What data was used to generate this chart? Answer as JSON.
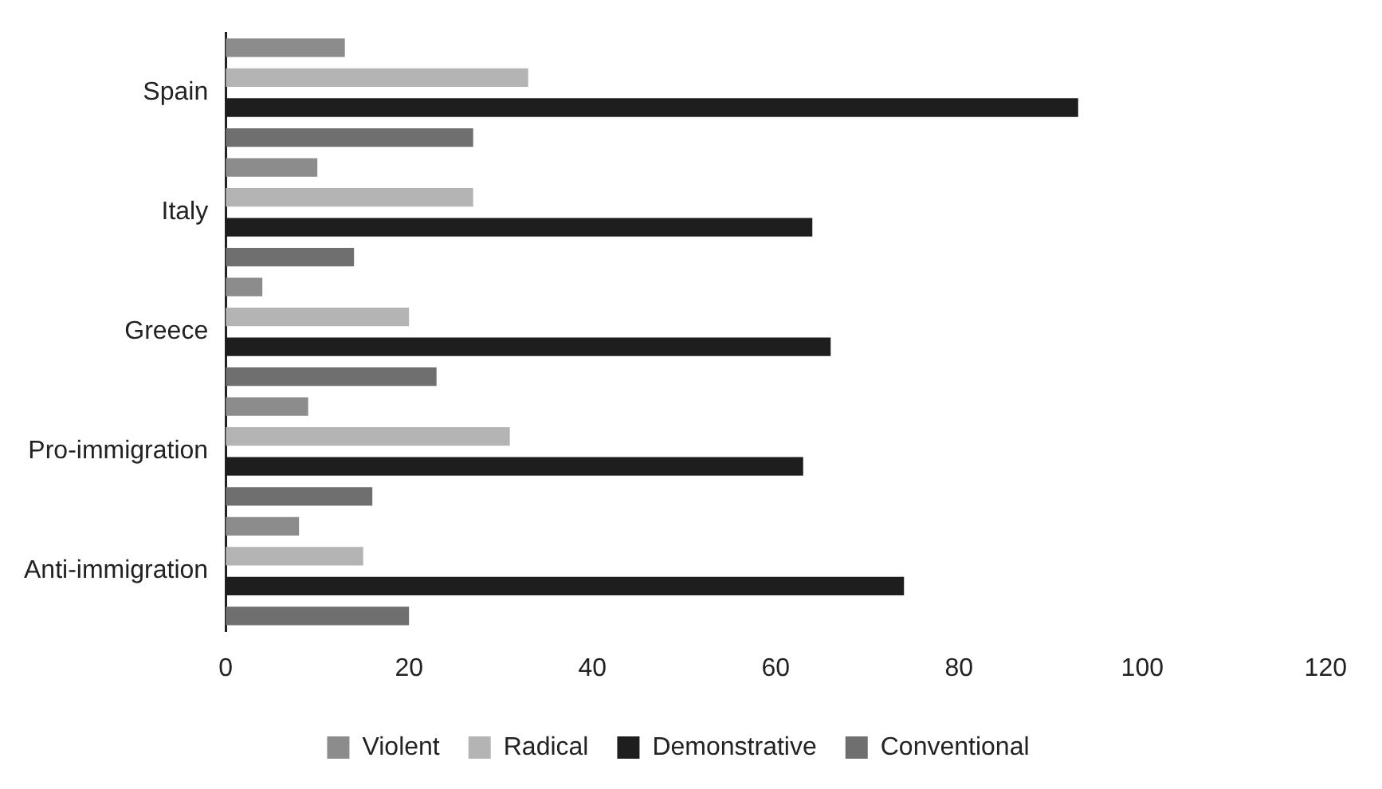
{
  "chart_data": {
    "type": "bar",
    "orientation": "horizontal",
    "categories": [
      "Spain",
      "Italy",
      "Greece",
      "Pro-immigration",
      "Anti-immigration"
    ],
    "series": [
      {
        "name": "Violent",
        "color": "#8c8c8c",
        "values": [
          13,
          10,
          4,
          9,
          8
        ]
      },
      {
        "name": "Radical",
        "color": "#b4b4b4",
        "values": [
          33,
          27,
          20,
          31,
          15
        ]
      },
      {
        "name": "Demonstrative",
        "color": "#1e1e1e",
        "values": [
          93,
          64,
          66,
          63,
          74
        ]
      },
      {
        "name": "Conventional",
        "color": "#6f6f6f",
        "values": [
          27,
          14,
          23,
          16,
          20
        ]
      }
    ],
    "xlim": [
      0,
      120
    ],
    "xticks": [
      0,
      20,
      40,
      60,
      80,
      100,
      120
    ],
    "grid": false,
    "legend": "bottom"
  }
}
